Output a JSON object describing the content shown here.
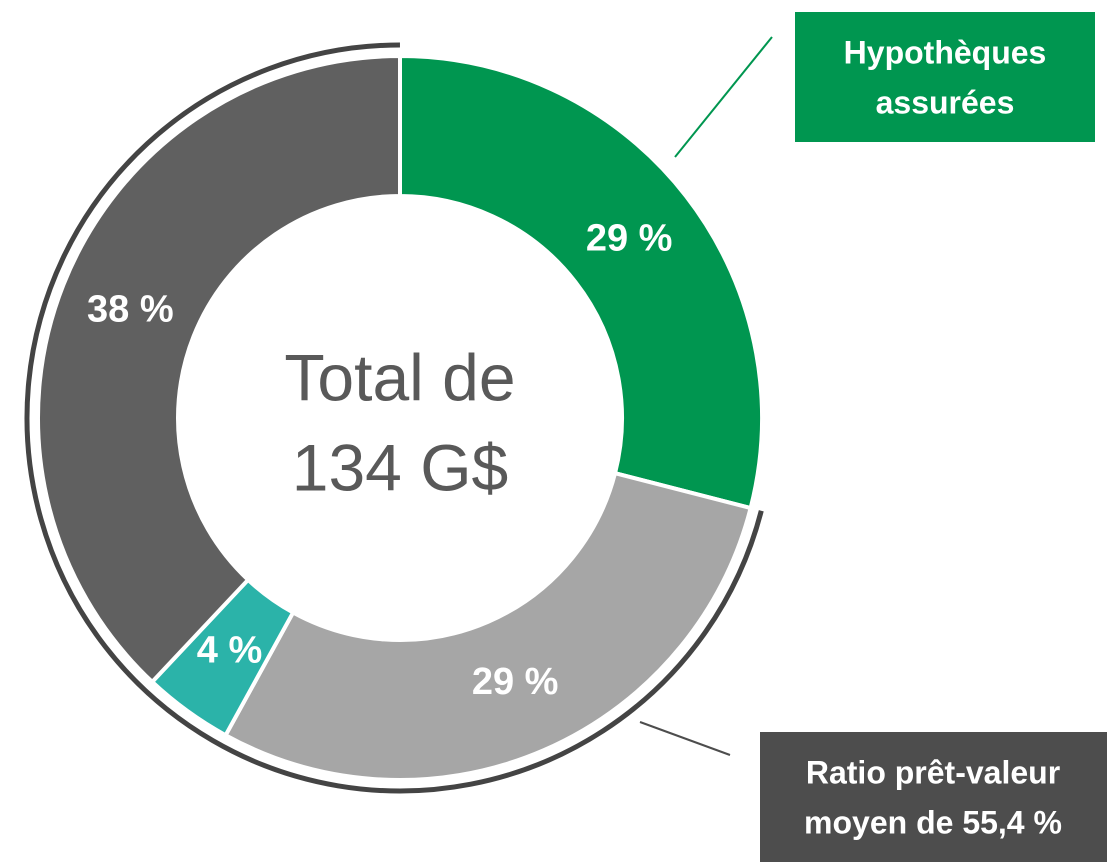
{
  "chart_data": {
    "type": "donut",
    "values": [
      29,
      29,
      4,
      38
    ],
    "value_labels": [
      "29 %",
      "29 %",
      "4 %",
      "38 %"
    ],
    "colors": [
      "#009650",
      "#a6a6a6",
      "#2bb3a9",
      "#606060"
    ],
    "center_text": [
      "Total de",
      "134 G$"
    ],
    "annotations": [
      {
        "lines": [
          "Hypothèques",
          "assurées"
        ],
        "color": "#009650"
      },
      {
        "lines": [
          "Ratio prêt-valeur",
          "moyen de 55,4 %"
        ],
        "color": "#4d4d4d"
      }
    ]
  }
}
